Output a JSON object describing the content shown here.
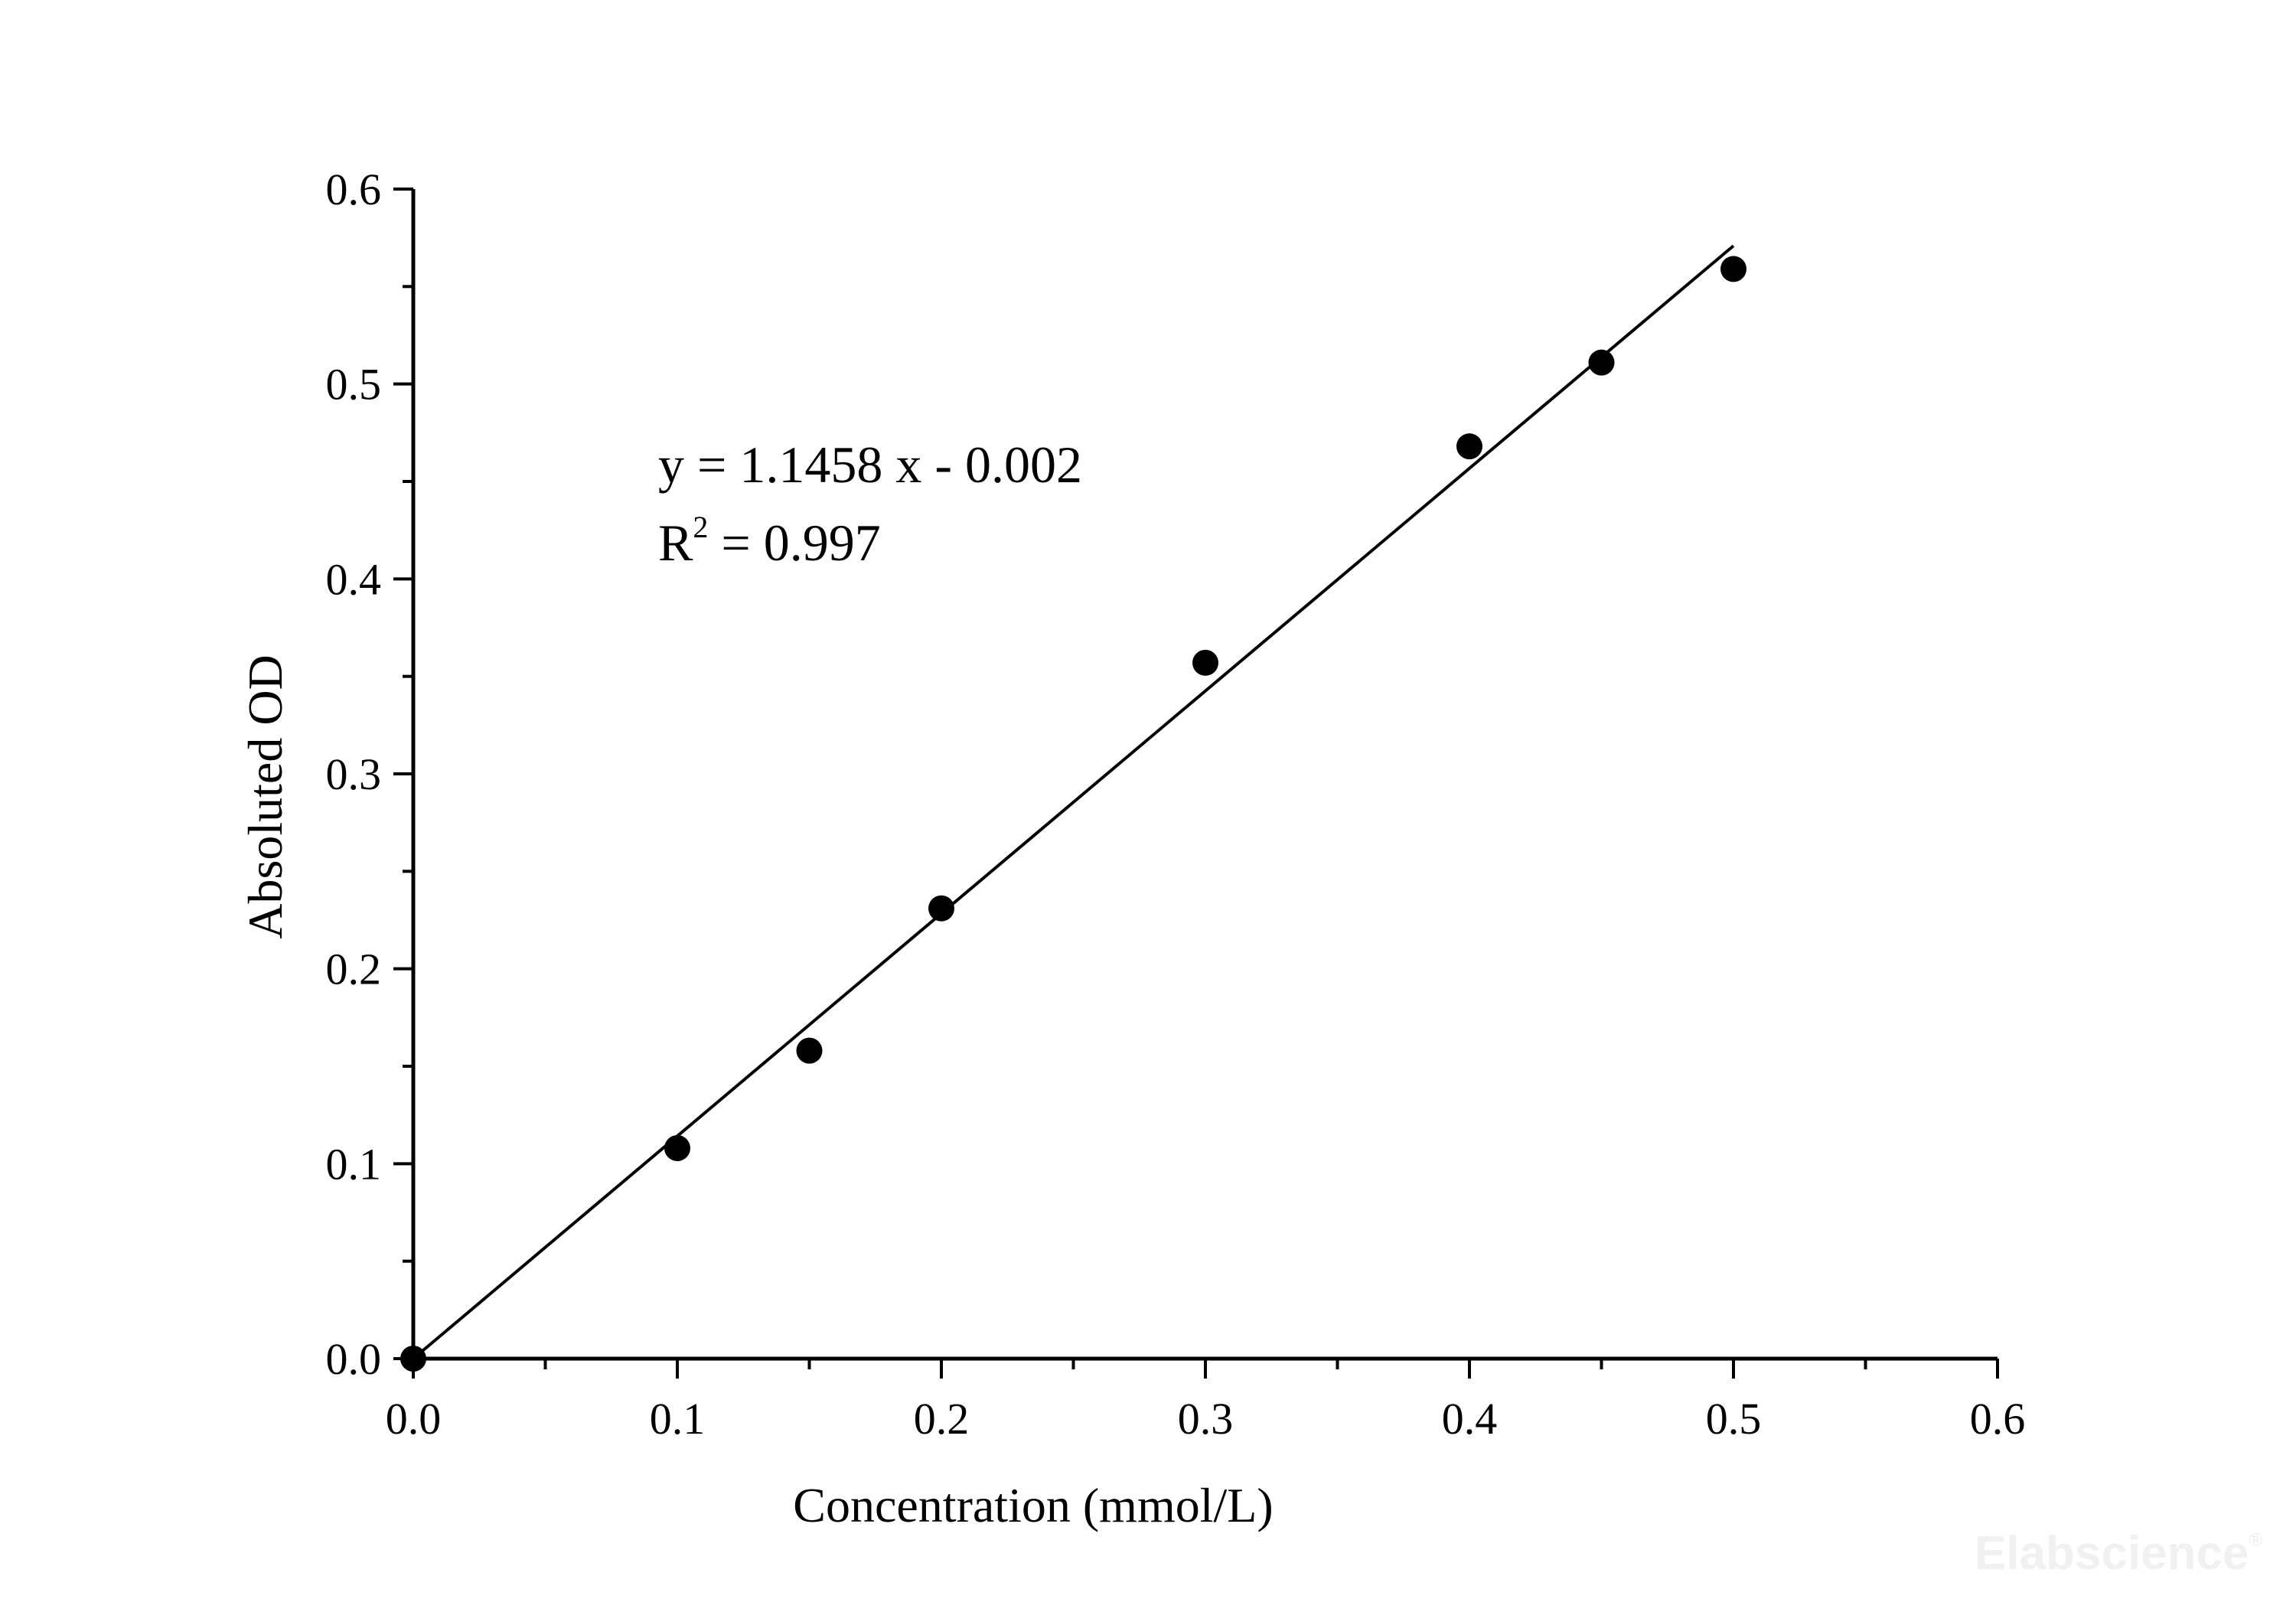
{
  "chart_data": {
    "type": "scatter",
    "title": "",
    "xlabel": "Concentration (mmol/L)",
    "ylabel": "Absoluted OD",
    "xlim": [
      0,
      0.6
    ],
    "ylim": [
      0,
      0.6
    ],
    "x_ticks": [
      "0.0",
      "0.1",
      "0.2",
      "0.3",
      "0.4",
      "0.5",
      "0.6"
    ],
    "y_ticks": [
      "0.0",
      "0.1",
      "0.2",
      "0.3",
      "0.4",
      "0.5",
      "0.6"
    ],
    "grid": false,
    "points": [
      {
        "x": 0.0,
        "y": 0.0
      },
      {
        "x": 0.1,
        "y": 0.108
      },
      {
        "x": 0.15,
        "y": 0.158
      },
      {
        "x": 0.2,
        "y": 0.231
      },
      {
        "x": 0.3,
        "y": 0.357
      },
      {
        "x": 0.4,
        "y": 0.468
      },
      {
        "x": 0.45,
        "y": 0.511
      },
      {
        "x": 0.5,
        "y": 0.559
      }
    ],
    "fit": {
      "slope": 1.1458,
      "intercept": -0.002,
      "x_range": [
        0,
        0.5
      ]
    },
    "annotation": {
      "equation": "y = 1.1458 x - 0.002",
      "r2_prefix": "R",
      "r2_sup": "2",
      "r2_value": " = 0.997"
    },
    "watermark": {
      "text": "Elabscience",
      "reg": "®"
    }
  }
}
